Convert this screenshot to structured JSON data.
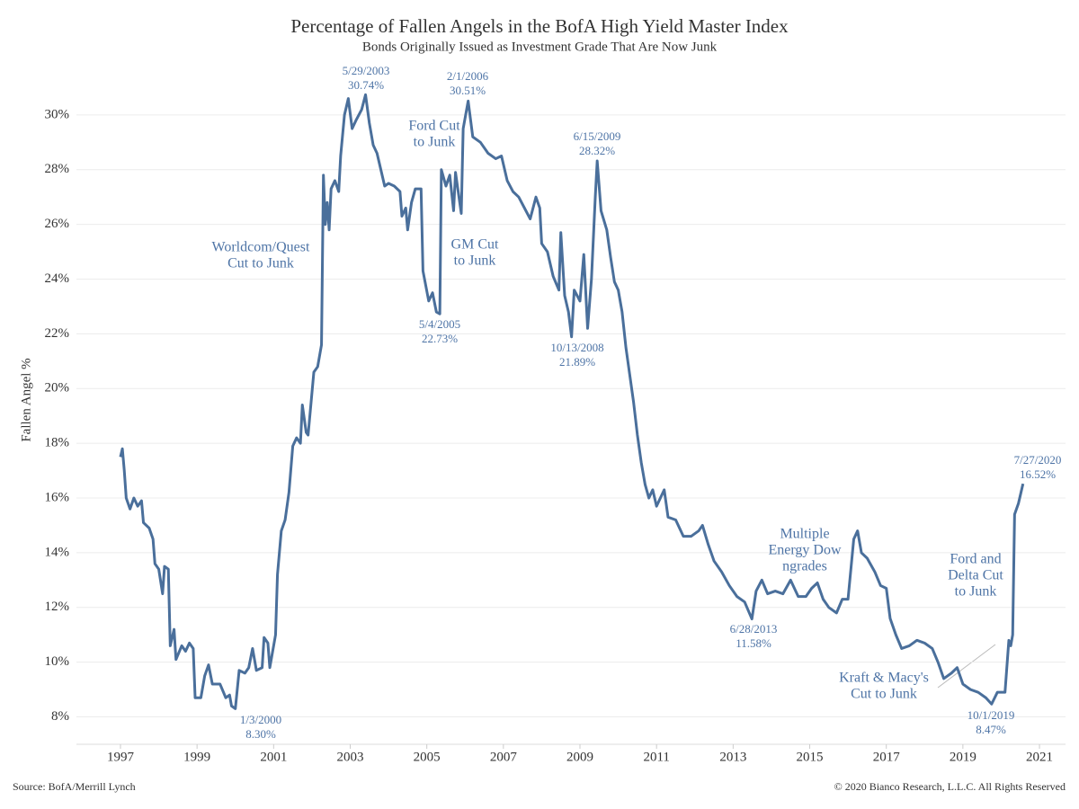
{
  "chart_data": {
    "type": "line",
    "title": "Percentage of Fallen Angels in the BofA High Yield Master Index",
    "subtitle": "Bonds Originally Issued as Investment Grade That Are Now Junk",
    "y_label": "Fallen Angel %",
    "source": "Source: BofA/Merrill Lynch",
    "copyright": "© 2020 Bianco Research, L.L.C. All Rights Reserved",
    "color": "#4a6f9b",
    "grid": true,
    "xlim": [
      1995.85,
      2021.68
    ],
    "xticks": [
      1997,
      1999,
      2001,
      2003,
      2005,
      2007,
      2009,
      2011,
      2013,
      2015,
      2017,
      2019,
      2021
    ],
    "ylim": [
      7,
      32
    ],
    "yticks": [
      {
        "value": 8,
        "label": "8%"
      },
      {
        "value": 10,
        "label": "10%"
      },
      {
        "value": 12,
        "label": "12%"
      },
      {
        "value": 14,
        "label": "14%"
      },
      {
        "value": 16,
        "label": "16%"
      },
      {
        "value": 18,
        "label": "18%"
      },
      {
        "value": 20,
        "label": "20%"
      },
      {
        "value": 22,
        "label": "22%"
      },
      {
        "value": 24,
        "label": "24%"
      },
      {
        "value": 26,
        "label": "26%"
      },
      {
        "value": 28,
        "label": "28%"
      },
      {
        "value": 30,
        "label": "30%"
      }
    ],
    "x": [
      1997.0,
      1997.05,
      1997.1,
      1997.15,
      1997.25,
      1997.35,
      1997.45,
      1997.55,
      1997.6,
      1997.75,
      1997.85,
      1997.9,
      1998.0,
      1998.1,
      1998.15,
      1998.25,
      1998.3,
      1998.4,
      1998.45,
      1998.6,
      1998.7,
      1998.8,
      1998.9,
      1998.95,
      1999.1,
      1999.2,
      1999.3,
      1999.4,
      1999.6,
      1999.75,
      1999.85,
      1999.9,
      2000.0,
      2000.1,
      2000.25,
      2000.35,
      2000.45,
      2000.55,
      2000.7,
      2000.75,
      2000.85,
      2000.9,
      2000.95,
      2001.05,
      2001.1,
      2001.2,
      2001.3,
      2001.4,
      2001.5,
      2001.6,
      2001.7,
      2001.75,
      2001.85,
      2001.9,
      2002.05,
      2002.15,
      2002.25,
      2002.3,
      2002.35,
      2002.4,
      2002.45,
      2002.5,
      2002.6,
      2002.7,
      2002.75,
      2002.85,
      2002.95,
      2003.05,
      2003.15,
      2003.3,
      2003.4,
      2003.5,
      2003.6,
      2003.7,
      2003.8,
      2003.9,
      2004.0,
      2004.15,
      2004.3,
      2004.35,
      2004.45,
      2004.5,
      2004.6,
      2004.7,
      2004.85,
      2004.9,
      2005.05,
      2005.15,
      2005.25,
      2005.34,
      2005.38,
      2005.5,
      2005.6,
      2005.7,
      2005.75,
      2005.9,
      2005.95,
      2006.08,
      2006.2,
      2006.4,
      2006.6,
      2006.8,
      2006.95,
      2007.1,
      2007.25,
      2007.4,
      2007.55,
      2007.7,
      2007.85,
      2007.95,
      2008.0,
      2008.15,
      2008.3,
      2008.45,
      2008.5,
      2008.6,
      2008.7,
      2008.78,
      2008.85,
      2009.0,
      2009.1,
      2009.2,
      2009.3,
      2009.4,
      2009.45,
      2009.55,
      2009.7,
      2009.8,
      2009.9,
      2010.0,
      2010.1,
      2010.2,
      2010.3,
      2010.4,
      2010.5,
      2010.6,
      2010.7,
      2010.8,
      2010.9,
      2011.0,
      2011.2,
      2011.3,
      2011.5,
      2011.7,
      2011.9,
      2012.1,
      2012.2,
      2012.35,
      2012.5,
      2012.7,
      2012.9,
      2013.1,
      2013.3,
      2013.49,
      2013.6,
      2013.75,
      2013.9,
      2014.1,
      2014.3,
      2014.5,
      2014.7,
      2014.9,
      2015.05,
      2015.2,
      2015.35,
      2015.5,
      2015.7,
      2015.85,
      2016.0,
      2016.15,
      2016.25,
      2016.35,
      2016.5,
      2016.7,
      2016.85,
      2017.0,
      2017.1,
      2017.25,
      2017.4,
      2017.6,
      2017.8,
      2018.0,
      2018.2,
      2018.35,
      2018.5,
      2018.7,
      2018.85,
      2019.0,
      2019.2,
      2019.4,
      2019.6,
      2019.75,
      2019.9,
      2020.1,
      2020.2,
      2020.25,
      2020.3,
      2020.35,
      2020.45,
      2020.5,
      2020.57
    ],
    "values": [
      17.5,
      17.8,
      17.0,
      16.0,
      15.6,
      16.0,
      15.7,
      15.9,
      15.1,
      14.9,
      14.5,
      13.6,
      13.4,
      12.5,
      13.5,
      13.4,
      10.6,
      11.2,
      10.1,
      10.6,
      10.4,
      10.7,
      10.5,
      8.7,
      8.7,
      9.5,
      9.9,
      9.2,
      9.2,
      8.7,
      8.8,
      8.4,
      8.3,
      9.7,
      9.6,
      9.8,
      10.5,
      9.7,
      9.8,
      10.9,
      10.7,
      9.8,
      10.2,
      11.0,
      13.2,
      14.8,
      15.2,
      16.2,
      17.9,
      18.2,
      18.0,
      19.4,
      18.4,
      18.3,
      20.6,
      20.8,
      21.6,
      27.8,
      26.0,
      26.8,
      25.8,
      27.3,
      27.6,
      27.2,
      28.5,
      30.0,
      30.6,
      29.5,
      29.8,
      30.2,
      30.74,
      29.7,
      28.9,
      28.6,
      28.0,
      27.4,
      27.5,
      27.4,
      27.2,
      26.3,
      26.6,
      25.8,
      26.8,
      27.3,
      27.3,
      24.3,
      23.2,
      23.5,
      22.8,
      22.73,
      28.0,
      27.4,
      27.8,
      26.5,
      27.9,
      26.4,
      29.5,
      30.51,
      29.2,
      29.0,
      28.6,
      28.4,
      28.5,
      27.6,
      27.2,
      27.0,
      26.6,
      26.2,
      27.0,
      26.6,
      25.3,
      25.0,
      24.1,
      23.6,
      25.7,
      23.4,
      22.8,
      21.89,
      23.6,
      23.2,
      24.9,
      22.2,
      24.0,
      27.0,
      28.32,
      26.5,
      25.8,
      24.8,
      23.9,
      23.6,
      22.8,
      21.5,
      20.5,
      19.5,
      18.3,
      17.3,
      16.5,
      16.0,
      16.3,
      15.7,
      16.3,
      15.3,
      15.2,
      14.6,
      14.6,
      14.8,
      15.0,
      14.3,
      13.7,
      13.3,
      12.8,
      12.4,
      12.2,
      11.58,
      12.6,
      13.0,
      12.5,
      12.6,
      12.5,
      13.0,
      12.4,
      12.4,
      12.7,
      12.9,
      12.3,
      12.0,
      11.8,
      12.3,
      12.3,
      14.5,
      14.8,
      14.0,
      13.8,
      13.3,
      12.8,
      12.7,
      11.6,
      11.0,
      10.5,
      10.6,
      10.8,
      10.7,
      10.5,
      10.0,
      9.4,
      9.6,
      9.8,
      9.2,
      9.0,
      8.9,
      8.7,
      8.47,
      8.9,
      8.9,
      10.8,
      10.6,
      11.0,
      15.4,
      15.8,
      16.1,
      16.52
    ],
    "annotations": [
      [
        "5/29/2003",
        "30.74%"
      ],
      [
        "2/1/2006",
        "30.51%"
      ],
      [
        "Ford Cut",
        "to Junk"
      ],
      [
        "Worldcom/Quest",
        "Cut to Junk"
      ],
      [
        "GM Cut",
        "to Junk"
      ],
      [
        "5/4/2005",
        "22.73%"
      ],
      [
        "6/15/2009",
        "28.32%"
      ],
      [
        "10/13/2008",
        "21.89%"
      ],
      [
        "1/3/2000",
        "8.30%"
      ],
      [
        "Multiple",
        "Energy Dow",
        "ngrades"
      ],
      [
        "6/28/2013",
        "11.58%"
      ],
      [
        "Kraft & Macy's",
        "Cut to Junk"
      ],
      [
        "Ford and",
        "Delta Cut",
        "to Junk"
      ],
      [
        "10/1/2019",
        "8.47%"
      ],
      [
        "7/27/2020",
        "16.52%"
      ]
    ]
  }
}
